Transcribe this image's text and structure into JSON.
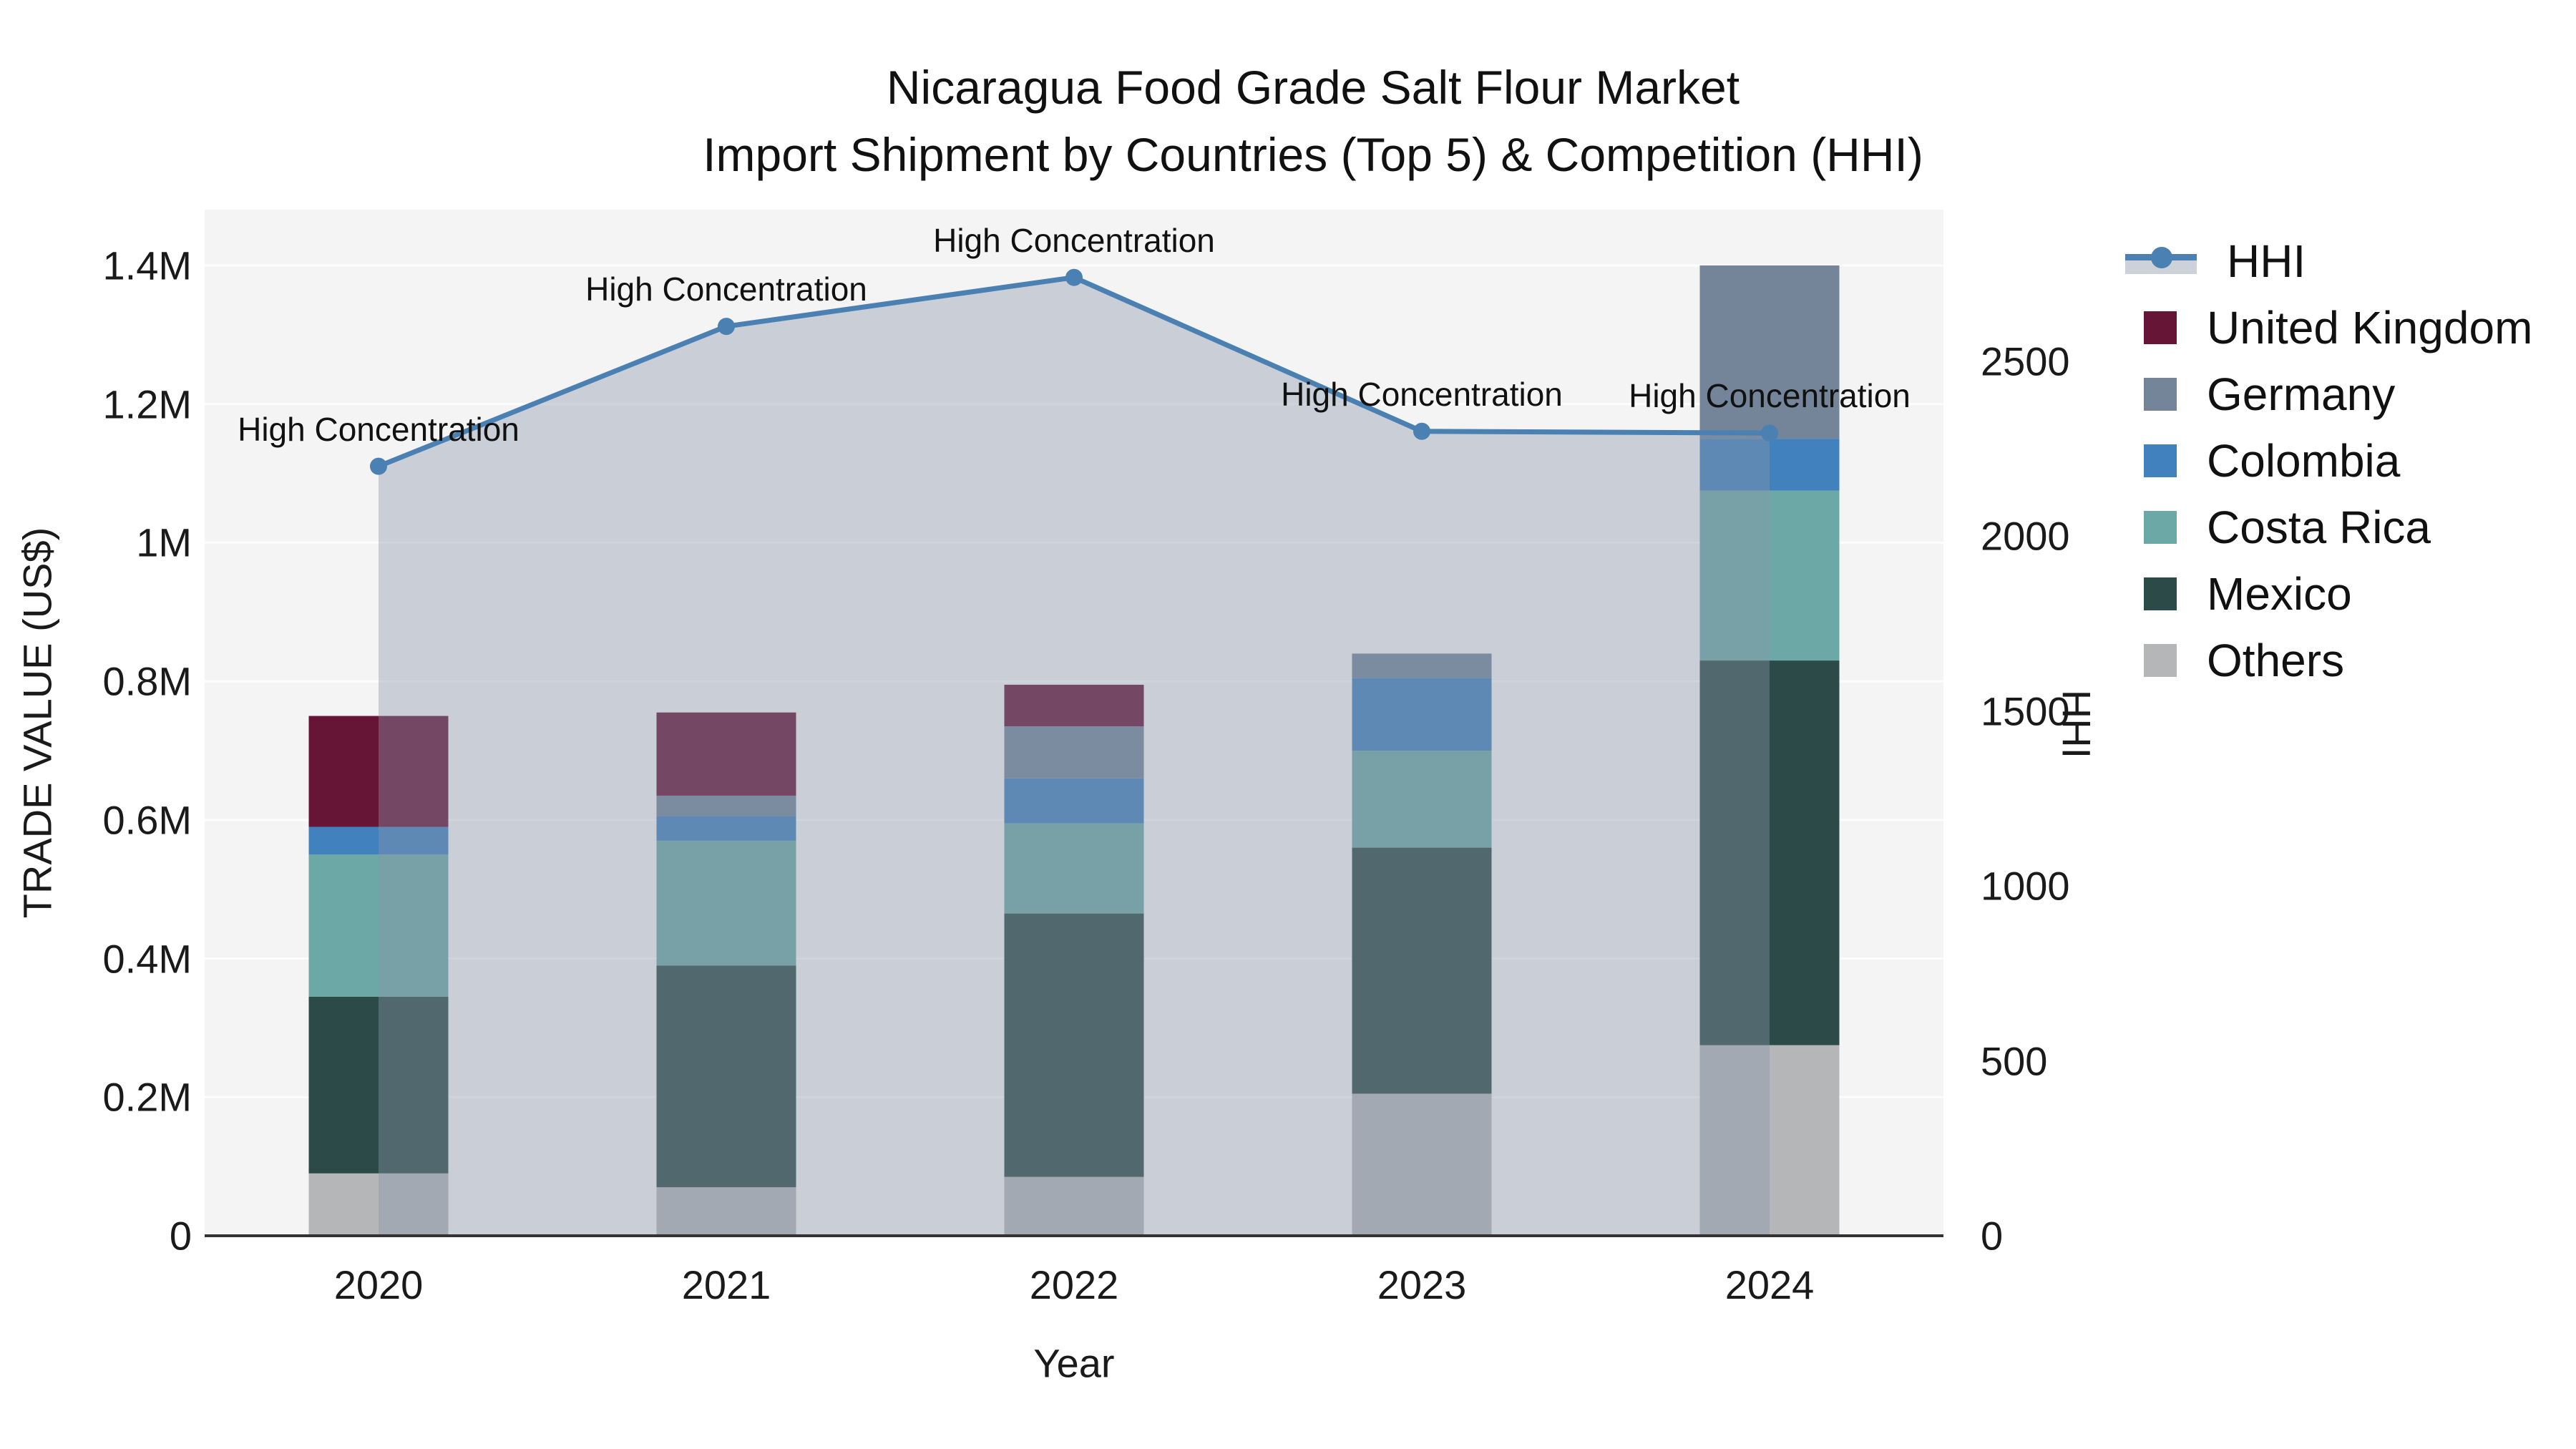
{
  "title": {
    "line1": "Nicaragua Food Grade Salt Flour Market",
    "line2": "Import Shipment by Countries (Top 5) & Competition (HHI)"
  },
  "chart_data": {
    "type": "combo_stacked_bar_line",
    "plot_bg": "#f4f4f5",
    "grid": "on_horizontal_only",
    "legend_position": "right",
    "x": {
      "label": "Year",
      "categories": [
        "2020",
        "2021",
        "2022",
        "2023",
        "2024"
      ]
    },
    "y_left": {
      "label": "TRADE VALUE (US$)",
      "tick_labels": [
        "0",
        "0.2M",
        "0.4M",
        "0.6M",
        "0.8M",
        "1M",
        "1.2M",
        "1.4M"
      ],
      "tick_values": [
        0,
        200000,
        400000,
        600000,
        800000,
        1000000,
        1200000,
        1400000
      ],
      "range": [
        0,
        1480000
      ]
    },
    "y_right": {
      "label": "HHI",
      "tick_labels": [
        "0",
        "500",
        "1000",
        "1500",
        "2000",
        "2500"
      ],
      "tick_values": [
        0,
        500,
        1000,
        1500,
        2000,
        2500
      ],
      "range": [
        0,
        2935
      ]
    },
    "bar_series": [
      {
        "name": "United Kingdom",
        "color": "#661536",
        "values": [
          160000,
          120000,
          60000,
          0,
          0
        ]
      },
      {
        "name": "Germany",
        "color": "#74859A",
        "values": [
          0,
          30000,
          75000,
          35000,
          250000
        ]
      },
      {
        "name": "Colombia",
        "color": "#4181BD",
        "values": [
          40000,
          35000,
          65000,
          105000,
          75000
        ]
      },
      {
        "name": "Costa Rica",
        "color": "#6BA8A6",
        "values": [
          205000,
          180000,
          130000,
          140000,
          245000
        ]
      },
      {
        "name": "Mexico",
        "color": "#2C4A47",
        "values": [
          255000,
          320000,
          380000,
          355000,
          555000
        ]
      },
      {
        "name": "Others",
        "color": "#B4B6B7",
        "values": [
          90000,
          70000,
          85000,
          205000,
          275000
        ]
      }
    ],
    "bar_totals": [
      750000,
      755000,
      795000,
      840000,
      1400000
    ],
    "stack_order_bottom_to_top": [
      "Others",
      "Mexico",
      "Costa Rica",
      "Colombia",
      "Germany",
      "United Kingdom"
    ],
    "line_series": {
      "name": "HHI",
      "color": "#4B80B2",
      "area_color": "rgba(137,149,170,0.40)",
      "values": [
        2200,
        2600,
        2740,
        2300,
        2295
      ],
      "annotations": [
        "High Concentration",
        "High Concentration",
        "High Concentration",
        "High Concentration",
        "High Concentration"
      ]
    },
    "legend_items": [
      "HHI",
      "United Kingdom",
      "Germany",
      "Colombia",
      "Costa Rica",
      "Mexico",
      "Others"
    ]
  }
}
